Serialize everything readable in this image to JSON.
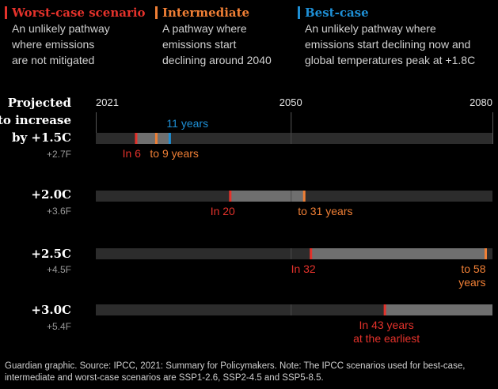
{
  "legend": [
    {
      "title": "Worst-case scenario",
      "desc": [
        "An unlikely pathway",
        "where emissions",
        "are not mitigated"
      ],
      "color": "#e4322b"
    },
    {
      "title": "Intermediate",
      "desc": [
        "A pathway where",
        "emissions start",
        "declining around 2040"
      ],
      "color": "#f07f35"
    },
    {
      "title": "Best-case",
      "desc": [
        "An unlikely pathway where",
        "emissions start declining now and",
        "global temperatures peak at +1.8C"
      ],
      "color": "#1e8fd5"
    }
  ],
  "rows": [
    {
      "label_lines": [
        "Projected",
        "to increase",
        "by +1.5C"
      ],
      "sub": "+2.7F"
    },
    {
      "label_lines": [
        "+2.0C"
      ],
      "sub": "+3.6F"
    },
    {
      "label_lines": [
        "+2.5C"
      ],
      "sub": "+4.5F"
    },
    {
      "label_lines": [
        "+3.0C"
      ],
      "sub": "+5.4F"
    }
  ],
  "footnote": "Guardian graphic. Source: IPCC, 2021: Summary for Policymakers. Note: The IPCC scenarios used for best-case, intermediate and worst-case scenarios are SSP1-2.6, SSP2-4.5 and SSP5-8.5.",
  "chart_data": {
    "type": "range",
    "x_ticks": [
      "2021",
      "2050",
      "2080"
    ],
    "x_range": [
      2021,
      2080
    ],
    "colors": {
      "track": "#2c2c2c",
      "range": "#6f6f6f",
      "gridline": "#555555",
      "worst": "#e4322b",
      "intermediate": "#f07f35",
      "best": "#1e8fd5"
    },
    "series": [
      {
        "warming": "+1.5C",
        "worst_case": 2027,
        "intermediate": 2030,
        "best_case": 2032,
        "labels": {
          "worst": [
            "In 6"
          ],
          "intermediate": [
            "to 9 years"
          ],
          "best": [
            "11 years"
          ]
        }
      },
      {
        "warming": "+2.0C",
        "worst_case": 2041,
        "intermediate": 2052,
        "labels": {
          "worst": [
            "In 20"
          ],
          "intermediate": [
            "to 31 years"
          ]
        }
      },
      {
        "warming": "+2.5C",
        "worst_case": 2053,
        "intermediate": 2079,
        "labels": {
          "worst": [
            "In 32"
          ],
          "intermediate": [
            "to 58",
            "years"
          ]
        }
      },
      {
        "warming": "+3.0C",
        "worst_case": 2064,
        "labels": {
          "worst": [
            "In 43 years",
            "at the earliest"
          ]
        }
      }
    ]
  }
}
